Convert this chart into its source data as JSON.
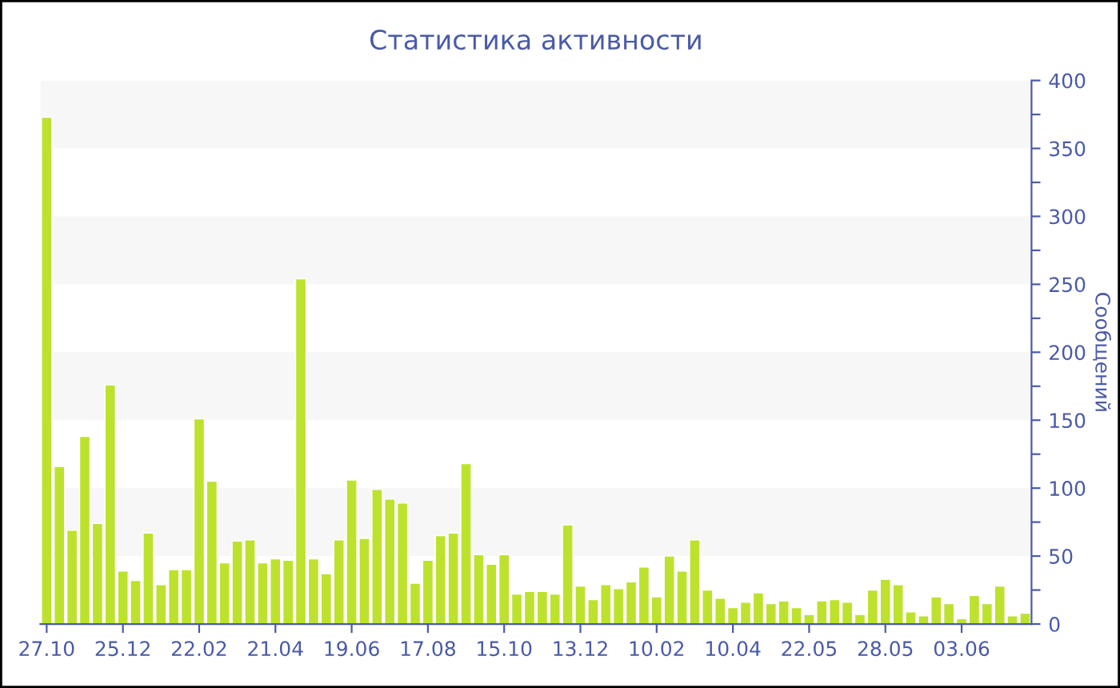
{
  "chart_data": {
    "type": "bar",
    "title": "Статистика активности",
    "ylabel": "Сообщений",
    "categories": [
      "27.10",
      null,
      null,
      null,
      null,
      null,
      "25.12",
      null,
      null,
      null,
      null,
      null,
      "22.02",
      null,
      null,
      null,
      null,
      null,
      "21.04",
      null,
      null,
      null,
      null,
      null,
      "19.06",
      null,
      null,
      null,
      null,
      null,
      "17.08",
      null,
      null,
      null,
      null,
      null,
      "15.10",
      null,
      null,
      null,
      null,
      null,
      "13.12",
      null,
      null,
      null,
      null,
      null,
      "10.02",
      null,
      null,
      null,
      null,
      null,
      "10.04",
      null,
      null,
      null,
      null,
      null,
      "22.05",
      null,
      null,
      null,
      null,
      null,
      "28.05",
      null,
      null,
      null,
      null,
      null,
      "03.06",
      null,
      null,
      null,
      null,
      null
    ],
    "values": [
      373,
      116,
      69,
      138,
      74,
      176,
      39,
      32,
      67,
      29,
      40,
      40,
      151,
      105,
      45,
      61,
      62,
      45,
      48,
      47,
      254,
      48,
      37,
      62,
      106,
      63,
      99,
      92,
      89,
      30,
      47,
      65,
      67,
      118,
      51,
      44,
      51,
      22,
      24,
      24,
      22,
      73,
      28,
      18,
      29,
      26,
      31,
      42,
      20,
      50,
      39,
      62,
      25,
      19,
      12,
      16,
      23,
      15,
      17,
      12,
      7,
      17,
      18,
      16,
      7,
      25,
      33,
      29,
      9,
      6,
      20,
      15,
      4,
      21,
      15,
      28,
      6,
      8
    ],
    "color": "#bde22e",
    "ylim": [
      0,
      400
    ],
    "yticks": [
      0,
      {
        "value": 25,
        "label": null
      },
      50,
      {
        "value": 75,
        "label": null
      },
      100,
      {
        "value": 125,
        "label": null
      },
      150,
      {
        "value": 175,
        "label": null
      },
      200,
      {
        "value": 225,
        "label": null
      },
      250,
      {
        "value": 275,
        "label": null
      },
      300,
      {
        "value": 325,
        "label": null
      },
      350,
      {
        "value": 375,
        "label": null
      },
      400
    ],
    "bands": [
      {
        "axis": "y",
        "from": 50,
        "to": 100,
        "color": "#f7f7f7"
      },
      {
        "axis": "y",
        "from": 150,
        "to": 200,
        "color": "#f7f7f7"
      },
      {
        "axis": "y",
        "from": 250,
        "to": 300,
        "color": "#f7f7f7"
      },
      {
        "axis": "y",
        "from": 350,
        "to": 400,
        "color": "#f7f7f7"
      }
    ]
  }
}
